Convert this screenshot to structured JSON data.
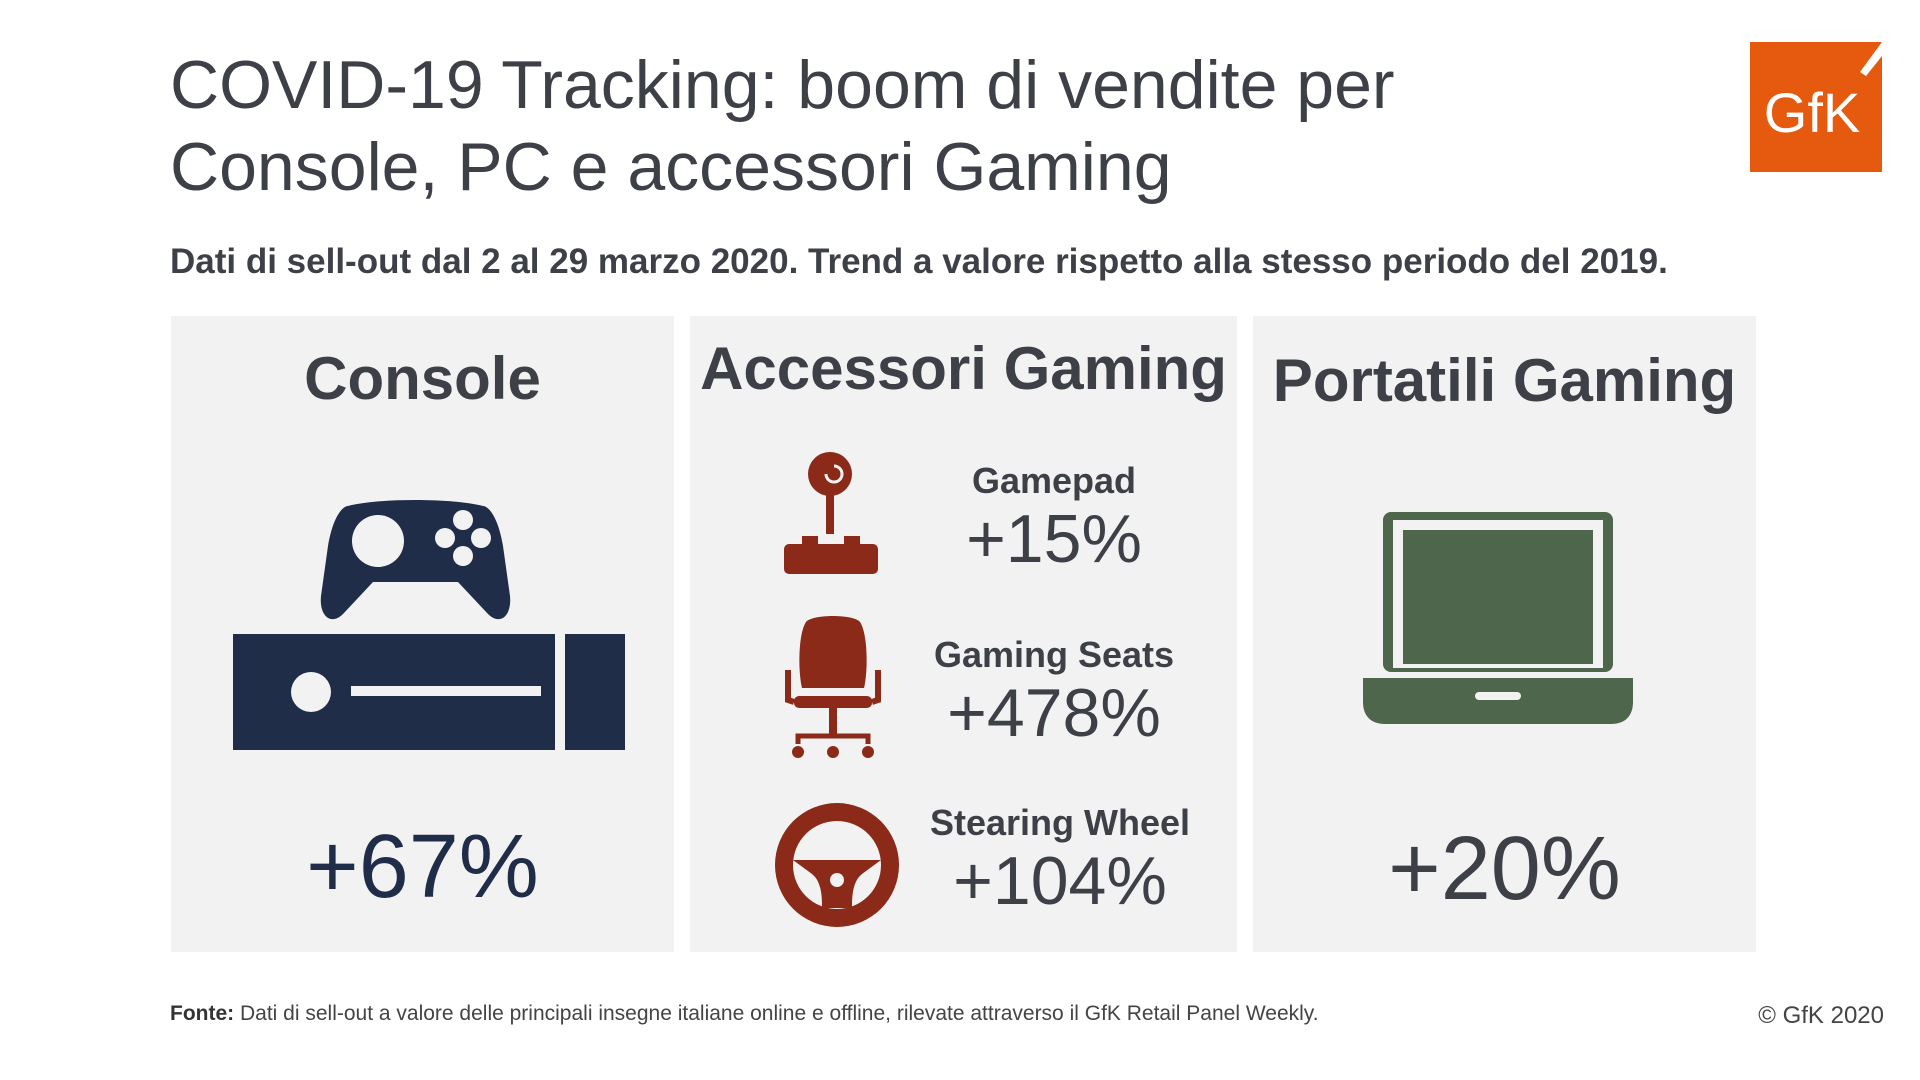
{
  "header": {
    "title_line1": "COVID-19 Tracking: boom di vendite per",
    "title_line2": "Console, PC e accessori Gaming",
    "subtitle": "Dati di sell-out dal 2 al 29 marzo 2020. Trend a valore rispetto alla stesso periodo del 2019.",
    "logo_text": "GfK",
    "logo_color": "#e55a0f"
  },
  "panels": {
    "console": {
      "title": "Console",
      "value": "+67%",
      "icon": "game-console-icon",
      "color": "#1f2d48"
    },
    "accessories": {
      "title": "Accessori Gaming",
      "color": "#8b2a18",
      "items": [
        {
          "name": "Gamepad",
          "value": "+15%",
          "icon": "joystick-icon"
        },
        {
          "name": "Gaming Seats",
          "value": "+478%",
          "icon": "gaming-chair-icon"
        },
        {
          "name": "Stearing Wheel",
          "value": "+104%",
          "icon": "steering-wheel-icon"
        }
      ]
    },
    "laptop": {
      "title": "Portatili Gaming",
      "value": "+20%",
      "icon": "laptop-icon",
      "color": "#4e664c"
    }
  },
  "footer": {
    "source_label": "Fonte:",
    "source_text": " Dati di sell-out a valore delle principali insegne italiane online e offline, rilevate attraverso il GfK Retail Panel Weekly.",
    "copyright": "© GfK 2020"
  }
}
